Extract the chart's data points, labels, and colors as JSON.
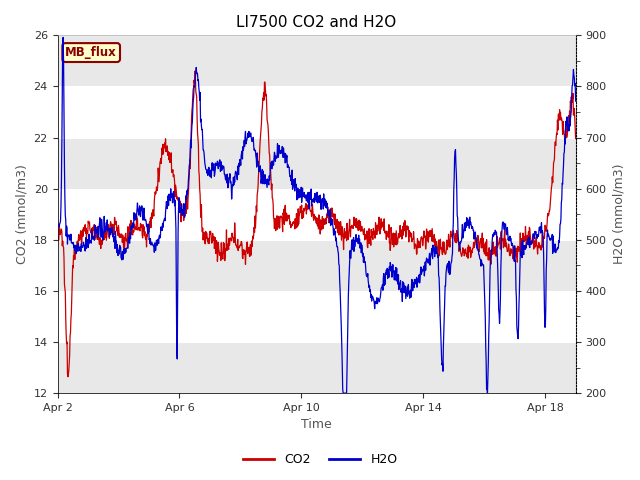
{
  "title": "LI7500 CO2 and H2O",
  "xlabel": "Time",
  "ylabel_left": "CO2 (mmol/m3)",
  "ylabel_right": "H2O (mmol/m3)",
  "ylim_left": [
    12,
    26
  ],
  "ylim_right": [
    200,
    900
  ],
  "yticks_left": [
    12,
    14,
    16,
    18,
    20,
    22,
    24,
    26
  ],
  "yticks_right": [
    200,
    300,
    400,
    500,
    600,
    700,
    800,
    900
  ],
  "yticks_right_minor": [
    250,
    350,
    450,
    550,
    650,
    750,
    850
  ],
  "xtick_labels": [
    "Apr 2",
    "Apr 6",
    "Apr 10",
    "Apr 14",
    "Apr 18"
  ],
  "background_color": "#ffffff",
  "plot_bg_color": "#ffffff",
  "band_color": "#e8e8e8",
  "co2_color": "#cc0000",
  "h2o_color": "#0000cc",
  "label_box_text": "MB_flux",
  "label_box_facecolor": "#ffffcc",
  "label_box_edgecolor": "#8B0000",
  "legend_co2": "CO2",
  "legend_h2o": "H2O"
}
